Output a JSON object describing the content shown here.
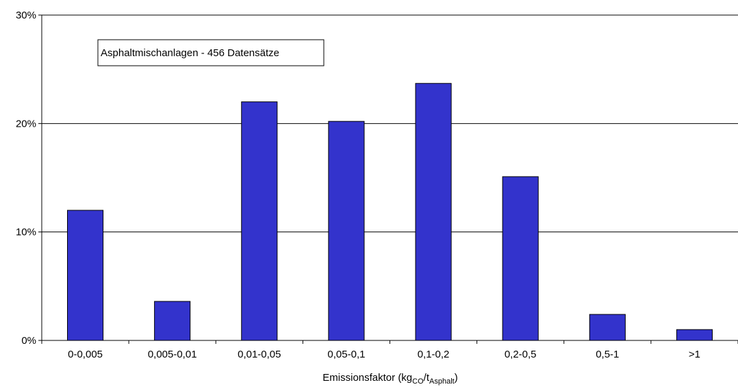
{
  "chart_data": {
    "type": "bar",
    "categories": [
      "0-0,005",
      "0,005-0,01",
      "0,01-0,05",
      "0,05-0,1",
      "0,1-0,2",
      "0,2-0,5",
      "0,5-1",
      ">1"
    ],
    "values": [
      12.0,
      3.6,
      22.0,
      20.2,
      23.7,
      15.1,
      2.4,
      1.0
    ],
    "ylim": [
      0,
      30
    ],
    "yticks": [
      "0%",
      "10%",
      "20%",
      "30%"
    ],
    "ytick_values": [
      0,
      10,
      20,
      30
    ],
    "xlabel": {
      "prefix": "Emissionsfaktor (kg",
      "sub1": "CO",
      "mid": "/t",
      "sub2": "Asphalt",
      "suffix": ")"
    },
    "annotation": "Asphaltmischanlagen - 456 Datensätze",
    "grid": true,
    "bar_color": "#3333CC"
  }
}
